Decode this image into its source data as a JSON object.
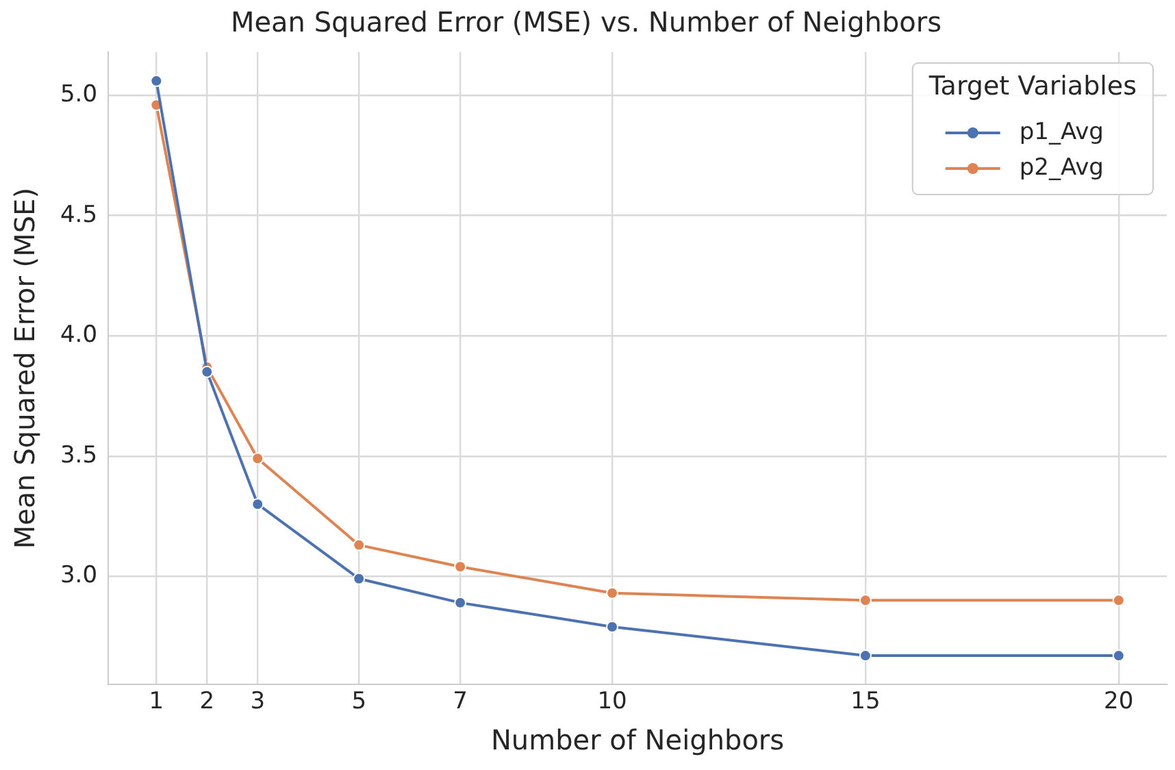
{
  "chart_data": {
    "type": "line",
    "title": "Mean Squared Error (MSE) vs. Number of Neighbors",
    "xlabel": "Number of Neighbors",
    "ylabel": "Mean Squared Error (MSE)",
    "legend_title": "Target Variables",
    "x": [
      1,
      2,
      3,
      5,
      7,
      10,
      15,
      20
    ],
    "series": [
      {
        "name": "p1_Avg",
        "color": "#4c72b0",
        "values": [
          5.06,
          3.85,
          3.3,
          2.99,
          2.89,
          2.79,
          2.67,
          2.67
        ]
      },
      {
        "name": "p2_Avg",
        "color": "#dd8452",
        "values": [
          4.96,
          3.87,
          3.49,
          3.13,
          3.04,
          2.93,
          2.9,
          2.9
        ]
      }
    ],
    "xlim": [
      0.05,
      20.95
    ],
    "xticks": [
      1,
      2,
      3,
      5,
      7,
      10,
      15,
      20
    ],
    "ylim": [
      2.55,
      5.18
    ],
    "yticks": [
      {
        "value": 3,
        "label": "3.0"
      },
      3.5,
      {
        "value": 4,
        "label": "4.0"
      },
      4.5,
      {
        "value": 5,
        "label": "5.0"
      }
    ],
    "grid": true,
    "legend": "top right",
    "marker": "circle",
    "line_style": "solid"
  }
}
